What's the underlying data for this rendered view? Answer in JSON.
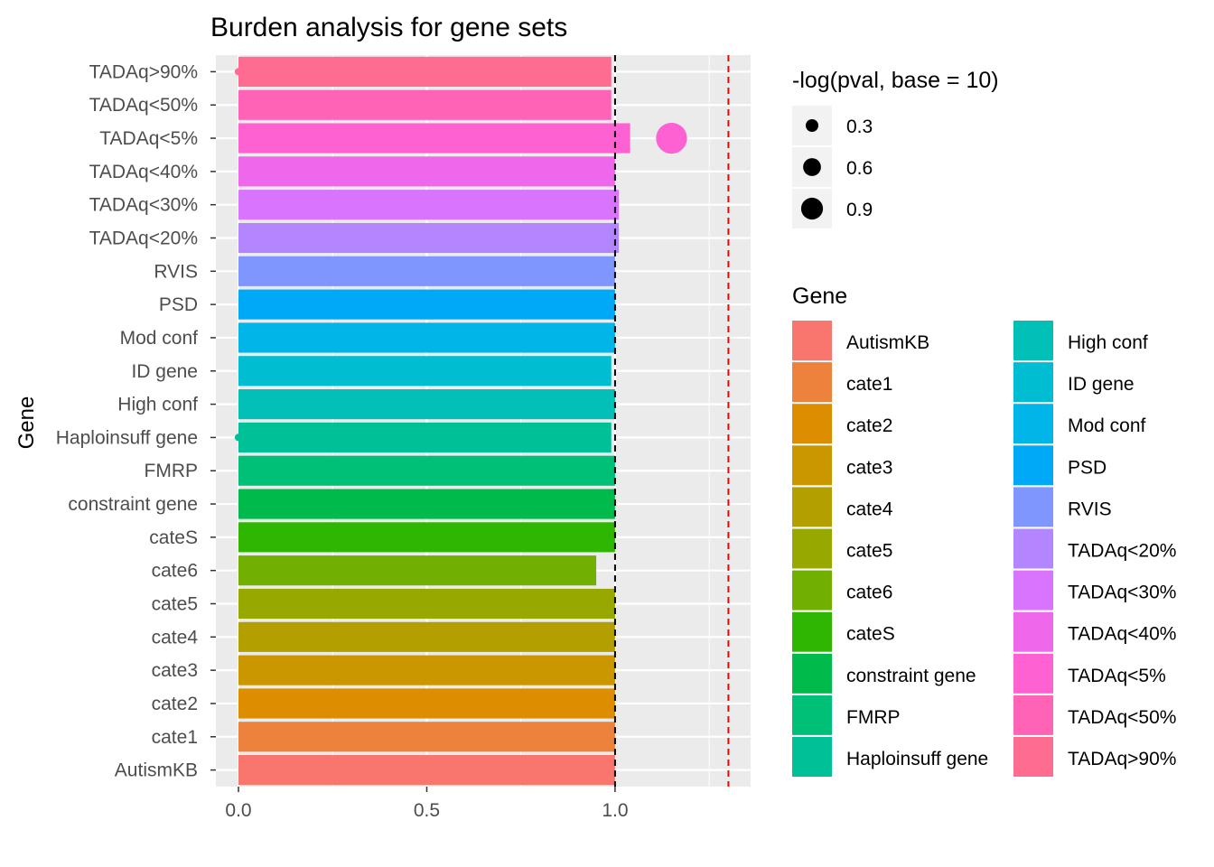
{
  "chart_data": {
    "type": "bar",
    "orientation": "horizontal",
    "title": "Burden analysis for gene sets",
    "xlabel": "",
    "ylabel": "Gene",
    "xlim": [
      -0.06,
      1.36
    ],
    "x_ticks": [
      0.0,
      0.5,
      1.0
    ],
    "x_tick_labels": [
      "0.0",
      "0.5",
      "1.0"
    ],
    "grid": true,
    "reference_lines": [
      {
        "x": 1.0,
        "color": "#000000",
        "style": "dashed"
      },
      {
        "x": 1.301,
        "color": "#ff0000",
        "style": "dashed"
      }
    ],
    "categories": [
      "AutismKB",
      "cate1",
      "cate2",
      "cate3",
      "cate4",
      "cate5",
      "cate6",
      "cateS",
      "constraint gene",
      "FMRP",
      "Haploinsuff gene",
      "High conf",
      "ID gene",
      "Mod conf",
      "PSD",
      "RVIS",
      "TADAq<20%",
      "TADAq<30%",
      "TADAq<40%",
      "TADAq<5%",
      "TADAq<50%",
      "TADAq>90%"
    ],
    "values": [
      1.0,
      1.0,
      1.0,
      1.0,
      1.0,
      1.0,
      0.95,
      1.0,
      1.0,
      1.0,
      0.99,
      1.0,
      0.99,
      1.0,
      1.0,
      1.0,
      1.01,
      1.01,
      1.0,
      1.04,
      0.99,
      0.99
    ],
    "colors": [
      "#F8766D",
      "#EC823C",
      "#DD8D00",
      "#CA9700",
      "#B3A000",
      "#97A900",
      "#71B000",
      "#2FB600",
      "#00BB4B",
      "#00BF76",
      "#00C098",
      "#00C0B7",
      "#00BDD1",
      "#00B5E7",
      "#00A9F8",
      "#7F96FF",
      "#B385FF",
      "#D874FD",
      "#EF67EB",
      "#FD61D2",
      "#FF63B6",
      "#FF6C91"
    ],
    "points": [
      {
        "category": "TADAq<5%",
        "x": 1.15,
        "neg_log_pval": 1.4
      },
      {
        "category": "TADAq>90%",
        "x": 0.0,
        "neg_log_pval": 0.08
      },
      {
        "category": "Haploinsuff gene",
        "x": 0.0,
        "neg_log_pval": 0.08
      }
    ],
    "size_legend": {
      "title": "-log(pval, base = 10)",
      "entries": [
        {
          "label": "0.3",
          "value": 0.3
        },
        {
          "label": "0.6",
          "value": 0.6
        },
        {
          "label": "0.9",
          "value": 0.9
        }
      ]
    },
    "color_legend": {
      "title": "Gene",
      "columns": 2
    }
  }
}
